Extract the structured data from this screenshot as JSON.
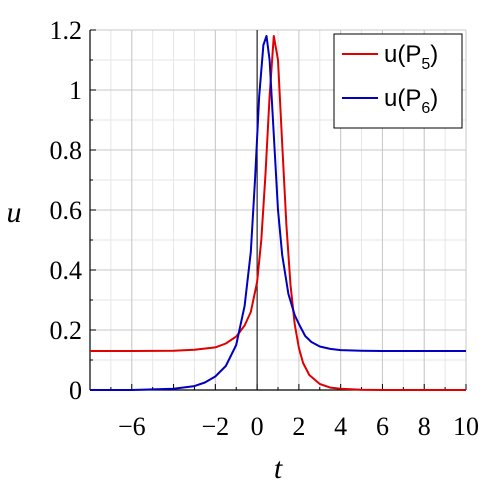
{
  "chart_data": {
    "type": "line",
    "xlabel": "t",
    "ylabel": "u",
    "xlim": [
      -8,
      10
    ],
    "ylim": [
      0,
      1.2
    ],
    "x_ticks": [
      {
        "value": -6,
        "label": "−6"
      },
      {
        "value": -2,
        "label": "−2"
      },
      {
        "value": 0,
        "label": "0"
      },
      {
        "value": 2,
        "label": "2"
      },
      {
        "value": 4,
        "label": "4"
      },
      {
        "value": 6,
        "label": "6"
      },
      {
        "value": 8,
        "label": "8"
      },
      {
        "value": 10,
        "label": "10"
      }
    ],
    "y_ticks": [
      {
        "value": 0,
        "label": "0"
      },
      {
        "value": 0.2,
        "label": "0.2"
      },
      {
        "value": 0.4,
        "label": "0.4"
      },
      {
        "value": 0.6,
        "label": "0.6"
      },
      {
        "value": 0.8,
        "label": "0.8"
      },
      {
        "value": 1,
        "label": "1"
      },
      {
        "value": 1.2,
        "label": "1.2"
      }
    ],
    "grid": true,
    "legend_position": "top-right",
    "series": [
      {
        "name": "u(P5)",
        "label_main": "u(P",
        "label_sub": "5",
        "label_close": ")",
        "color": "#e00000",
        "x": [
          -8,
          -6,
          -4,
          -3,
          -2,
          -1.5,
          -1,
          -0.6,
          -0.3,
          0,
          0.2,
          0.4,
          0.6,
          0.8,
          1.0,
          1.2,
          1.4,
          1.6,
          1.8,
          2.0,
          2.2,
          2.5,
          3,
          3.5,
          4,
          5,
          6,
          8,
          10
        ],
        "y": [
          0.13,
          0.13,
          0.131,
          0.134,
          0.142,
          0.155,
          0.178,
          0.215,
          0.26,
          0.36,
          0.5,
          0.72,
          0.98,
          1.18,
          1.1,
          0.82,
          0.55,
          0.35,
          0.22,
          0.14,
          0.09,
          0.05,
          0.02,
          0.008,
          0.004,
          0.001,
          0.0,
          0.0,
          0.0
        ]
      },
      {
        "name": "u(P6)",
        "label_main": "u(P",
        "label_sub": "6",
        "label_close": ")",
        "color": "#0000c0",
        "x": [
          -8,
          -6,
          -4,
          -3,
          -2.5,
          -2,
          -1.5,
          -1,
          -0.6,
          -0.3,
          -0.1,
          0.1,
          0.3,
          0.45,
          0.6,
          0.8,
          1.0,
          1.2,
          1.5,
          1.8,
          2.0,
          2.3,
          2.6,
          3,
          3.5,
          4,
          5,
          6,
          8,
          10
        ],
        "y": [
          0.0,
          0.0,
          0.004,
          0.013,
          0.025,
          0.045,
          0.08,
          0.15,
          0.28,
          0.46,
          0.7,
          0.98,
          1.15,
          1.18,
          1.1,
          0.85,
          0.6,
          0.45,
          0.32,
          0.25,
          0.22,
          0.18,
          0.16,
          0.145,
          0.137,
          0.133,
          0.131,
          0.13,
          0.13,
          0.13
        ]
      }
    ]
  }
}
